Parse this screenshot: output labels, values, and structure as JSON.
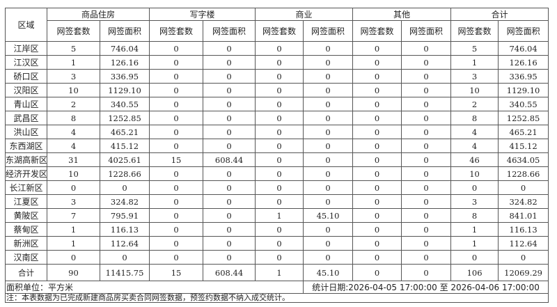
{
  "header": {
    "region_label": "区域",
    "groups": [
      "商品住房",
      "写字楼",
      "商业",
      "其他",
      "合计"
    ],
    "sub_labels": [
      "网签套数",
      "网签面积"
    ]
  },
  "rows": [
    {
      "region": "江岸区",
      "values": [
        "5",
        "746.04",
        "0",
        "0",
        "0",
        "0",
        "0",
        "0",
        "5",
        "746.04"
      ]
    },
    {
      "region": "江汉区",
      "values": [
        "1",
        "126.16",
        "0",
        "0",
        "0",
        "0",
        "0",
        "0",
        "1",
        "126.16"
      ]
    },
    {
      "region": "硚口区",
      "values": [
        "3",
        "336.95",
        "0",
        "0",
        "0",
        "0",
        "0",
        "0",
        "3",
        "336.95"
      ]
    },
    {
      "region": "汉阳区",
      "values": [
        "10",
        "1129.10",
        "0",
        "0",
        "0",
        "0",
        "0",
        "0",
        "10",
        "1129.10"
      ]
    },
    {
      "region": "青山区",
      "values": [
        "2",
        "340.55",
        "0",
        "0",
        "0",
        "0",
        "0",
        "0",
        "2",
        "340.55"
      ]
    },
    {
      "region": "武昌区",
      "values": [
        "8",
        "1252.85",
        "0",
        "0",
        "0",
        "0",
        "0",
        "0",
        "8",
        "1252.85"
      ]
    },
    {
      "region": "洪山区",
      "values": [
        "4",
        "465.21",
        "0",
        "0",
        "0",
        "0",
        "0",
        "0",
        "4",
        "465.21"
      ]
    },
    {
      "region": "东西湖区",
      "values": [
        "4",
        "415.12",
        "0",
        "0",
        "0",
        "0",
        "0",
        "0",
        "4",
        "415.12"
      ]
    },
    {
      "region": "东湖高新区",
      "values": [
        "31",
        "4025.61",
        "15",
        "608.44",
        "0",
        "0",
        "0",
        "0",
        "46",
        "4634.05"
      ]
    },
    {
      "region": "经济开发区",
      "values": [
        "10",
        "1228.66",
        "0",
        "0",
        "0",
        "0",
        "0",
        "0",
        "10",
        "1228.66"
      ]
    },
    {
      "region": "长江新区",
      "values": [
        "0",
        "0",
        "0",
        "0",
        "0",
        "0",
        "0",
        "0",
        "0",
        "0"
      ]
    },
    {
      "region": "江夏区",
      "values": [
        "3",
        "324.82",
        "0",
        "0",
        "0",
        "0",
        "0",
        "0",
        "3",
        "324.82"
      ]
    },
    {
      "region": "黄陂区",
      "values": [
        "7",
        "795.91",
        "0",
        "0",
        "1",
        "45.10",
        "0",
        "0",
        "8",
        "841.01"
      ]
    },
    {
      "region": "蔡甸区",
      "values": [
        "1",
        "116.13",
        "0",
        "0",
        "0",
        "0",
        "0",
        "0",
        "1",
        "116.13"
      ]
    },
    {
      "region": "新洲区",
      "values": [
        "1",
        "112.64",
        "0",
        "0",
        "0",
        "0",
        "0",
        "0",
        "1",
        "112.64"
      ]
    },
    {
      "region": "汉南区",
      "values": [
        "0",
        "0",
        "0",
        "0",
        "0",
        "0",
        "0",
        "0",
        "0",
        "0"
      ]
    }
  ],
  "total": {
    "region": "合计",
    "values": [
      "90",
      "11415.75",
      "15",
      "608.44",
      "1",
      "45.10",
      "0",
      "0",
      "106",
      "12069.29"
    ]
  },
  "footer": {
    "unit": "面积单位：平方米",
    "date_range": "统计日期:2026-04-05 17:00:00 至 2026-04-06 17:00:00",
    "note": "注：本表数据为已完成新建商品房买卖合同网签数据，预签约数据不纳入成交统计。"
  }
}
